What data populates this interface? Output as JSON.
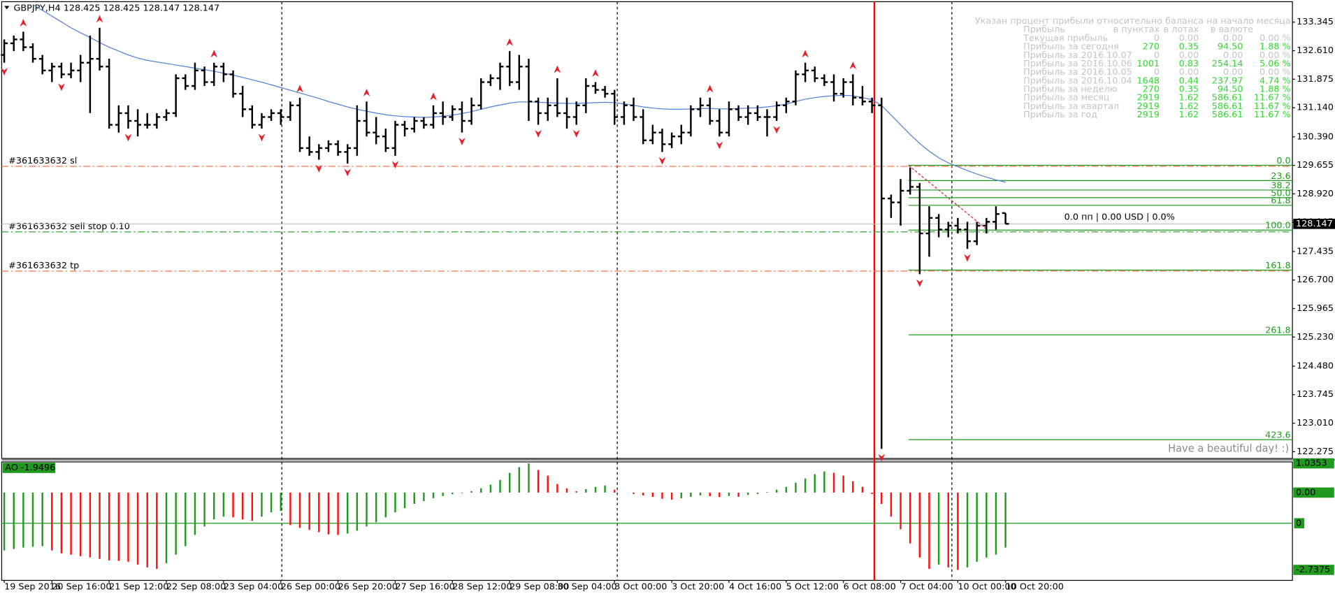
{
  "chart_data": {
    "type": "ohlc",
    "title": "GBPJPY,H4  128.425 128.425 128.147 128.147",
    "color": "#000000",
    "categories": [
      "19 Sep 2016",
      null,
      null,
      null,
      null,
      "20 Sep 16:00",
      null,
      null,
      null,
      null,
      null,
      "21 Sep 12:00",
      null,
      null,
      null,
      null,
      null,
      "22 Sep 08:00",
      null,
      null,
      null,
      null,
      null,
      "23 Sep 04:00",
      null,
      null,
      null,
      null,
      null,
      "26 Sep 00:00",
      null,
      null,
      null,
      null,
      null,
      "26 Sep 20:00",
      null,
      null,
      null,
      null,
      null,
      "27 Sep 16:00",
      null,
      null,
      null,
      null,
      null,
      "28 Sep 12:00",
      null,
      null,
      null,
      null,
      null,
      "29 Sep 08:00",
      null,
      null,
      null,
      null,
      "30 Sep 04:00",
      null,
      null,
      null,
      null,
      null,
      "3 Oct 00:00",
      null,
      null,
      null,
      null,
      null,
      "3 Oct 20:00",
      null,
      null,
      null,
      null,
      null,
      "4 Oct 16:00",
      null,
      null,
      null,
      null,
      null,
      "5 Oct 12:00",
      null,
      null,
      null,
      null,
      null,
      "6 Oct 08:00",
      null,
      null,
      null,
      null,
      null,
      "7 Oct 04:00",
      null,
      null,
      null,
      null,
      null,
      "10 Oct 00:00",
      null,
      null,
      null,
      null,
      "10 Oct 20:00"
    ],
    "open": [
      132.5,
      132.8,
      132.9,
      132.7,
      132.4,
      132.1,
      132.2,
      132.0,
      132.1,
      132.3,
      132.4,
      132.2,
      130.7,
      131.0,
      130.8,
      130.7,
      130.7,
      130.9,
      131.0,
      131.9,
      131.7,
      132.1,
      131.8,
      132.2,
      132.0,
      131.5,
      131.1,
      130.7,
      130.9,
      131.0,
      130.9,
      131.2,
      130.1,
      130.0,
      130.1,
      130.2,
      130.0,
      130.1,
      130.8,
      130.5,
      130.4,
      130.1,
      130.7,
      130.6,
      130.8,
      130.7,
      131.0,
      130.9,
      131.1,
      130.8,
      131.2,
      131.8,
      131.9,
      132.2,
      131.8,
      132.2,
      131.3,
      131.0,
      131.2,
      131.0,
      130.9,
      131.2,
      131.7,
      131.6,
      131.5,
      130.9,
      131.2,
      130.9,
      130.3,
      130.5,
      130.2,
      130.4,
      130.5,
      131.1,
      131.2,
      130.8,
      130.5,
      131.1,
      130.9,
      131.0,
      130.9,
      130.9,
      131.2,
      131.3,
      132.0,
      132.1,
      131.9,
      131.8,
      131.5,
      131.8,
      131.4,
      131.3,
      131.2,
      128.8,
      128.7,
      129.0,
      129.1,
      127.9,
      128.3,
      128.0,
      128.1,
      128.0,
      127.7,
      128.1,
      128.2,
      128.425
    ],
    "high": [
      132.9,
      133.0,
      133.1,
      132.8,
      132.5,
      132.3,
      132.3,
      132.3,
      132.5,
      133.0,
      133.2,
      132.4,
      131.2,
      131.2,
      131.1,
      131.0,
      131.0,
      131.1,
      132.0,
      132.0,
      132.3,
      132.2,
      132.3,
      132.3,
      132.1,
      131.7,
      131.2,
      131.0,
      131.1,
      131.1,
      131.3,
      131.4,
      130.4,
      130.2,
      130.3,
      130.3,
      130.2,
      131.2,
      131.3,
      130.9,
      130.6,
      130.8,
      130.8,
      130.9,
      130.9,
      131.2,
      131.3,
      131.2,
      131.3,
      131.4,
      131.9,
      132.0,
      132.3,
      132.6,
      132.5,
      132.4,
      131.4,
      131.4,
      131.9,
      131.4,
      131.3,
      131.9,
      131.8,
      131.7,
      131.6,
      131.3,
      131.4,
      131.1,
      130.7,
      130.6,
      130.5,
      130.7,
      131.2,
      131.4,
      131.4,
      131.1,
      131.3,
      131.2,
      131.2,
      131.2,
      131.1,
      131.3,
      131.4,
      132.1,
      132.3,
      132.2,
      132.0,
      132.0,
      131.9,
      132.0,
      131.7,
      131.4,
      131.4,
      128.9,
      129.3,
      129.6,
      129.2,
      128.6,
      128.4,
      128.2,
      128.3,
      128.2,
      128.2,
      128.3,
      128.6,
      128.425
    ],
    "low": [
      132.3,
      132.6,
      132.6,
      132.3,
      132.0,
      131.8,
      131.9,
      131.9,
      131.8,
      131.0,
      132.1,
      130.6,
      130.5,
      130.6,
      130.4,
      130.6,
      130.6,
      130.8,
      130.9,
      131.6,
      131.6,
      131.7,
      131.7,
      131.8,
      131.4,
      130.9,
      130.6,
      130.6,
      130.8,
      130.7,
      130.8,
      130.0,
      129.9,
      129.8,
      130.0,
      129.9,
      129.7,
      129.9,
      130.4,
      130.2,
      130.0,
      129.9,
      130.4,
      130.5,
      130.6,
      130.6,
      130.7,
      130.8,
      130.5,
      130.7,
      131.1,
      131.7,
      131.6,
      131.7,
      131.6,
      130.8,
      130.7,
      130.8,
      130.9,
      130.6,
      130.7,
      131.0,
      131.5,
      131.4,
      130.7,
      130.7,
      130.8,
      130.2,
      130.2,
      130.0,
      130.1,
      130.2,
      130.4,
      130.9,
      130.7,
      130.4,
      130.4,
      130.8,
      130.7,
      130.8,
      130.4,
      130.8,
      131.0,
      131.2,
      131.8,
      131.8,
      131.7,
      131.3,
      131.4,
      131.2,
      131.2,
      131.0,
      122.35,
      128.3,
      128.1,
      128.9,
      126.85,
      127.3,
      127.8,
      127.8,
      127.9,
      127.5,
      127.6,
      127.9,
      128.0,
      128.147
    ],
    "close": [
      132.8,
      132.9,
      132.7,
      132.4,
      132.1,
      132.2,
      132.0,
      132.1,
      132.3,
      132.4,
      132.2,
      130.7,
      131.0,
      130.8,
      130.7,
      130.7,
      130.9,
      131.0,
      131.9,
      131.7,
      132.1,
      131.8,
      132.2,
      132.0,
      131.5,
      131.1,
      130.7,
      130.9,
      131.0,
      130.9,
      131.2,
      130.1,
      130.0,
      130.1,
      130.2,
      130.0,
      130.1,
      130.8,
      130.5,
      130.4,
      130.1,
      130.7,
      130.6,
      130.8,
      130.7,
      131.0,
      130.9,
      131.1,
      130.8,
      131.2,
      131.8,
      131.9,
      132.2,
      131.8,
      132.2,
      131.3,
      131.0,
      131.2,
      131.0,
      130.9,
      131.2,
      131.7,
      131.6,
      131.5,
      130.9,
      131.2,
      130.9,
      130.3,
      130.5,
      130.2,
      130.4,
      130.5,
      131.1,
      131.2,
      130.8,
      130.5,
      131.1,
      130.9,
      131.0,
      130.9,
      130.9,
      131.2,
      131.3,
      132.0,
      132.1,
      131.9,
      131.8,
      131.5,
      131.8,
      131.4,
      131.3,
      131.2,
      128.8,
      128.7,
      129.0,
      129.1,
      127.9,
      128.3,
      128.0,
      128.1,
      128.0,
      127.7,
      128.1,
      128.2,
      128.4,
      128.147
    ],
    "ma": {
      "color": "#4f7fdc",
      "values": [
        null,
        null,
        null,
        133.8,
        133.65,
        133.5,
        133.35,
        133.2,
        133.07,
        132.95,
        132.82,
        132.7,
        132.6,
        132.5,
        132.42,
        132.36,
        132.32,
        132.28,
        132.24,
        132.2,
        132.16,
        132.12,
        132.08,
        132.03,
        131.98,
        131.92,
        131.86,
        131.8,
        131.73,
        131.66,
        131.59,
        131.52,
        131.45,
        131.38,
        131.3,
        131.23,
        131.16,
        131.1,
        131.05,
        131.0,
        130.96,
        130.93,
        130.91,
        130.9,
        130.89,
        130.9,
        130.92,
        130.95,
        130.99,
        131.04,
        131.1,
        131.16,
        131.21,
        131.26,
        131.29,
        131.29,
        131.28,
        131.27,
        131.26,
        131.25,
        131.25,
        131.26,
        131.27,
        131.28,
        131.27,
        131.24,
        131.2,
        131.16,
        131.13,
        131.11,
        131.1,
        131.1,
        131.11,
        131.12,
        131.12,
        131.11,
        131.11,
        131.12,
        131.13,
        131.14,
        131.16,
        131.19,
        131.23,
        131.3,
        131.36,
        131.4,
        131.43,
        131.45,
        131.46,
        131.45,
        131.4,
        131.35,
        131.2,
        130.95,
        130.7,
        130.45,
        130.22,
        130.02,
        129.85,
        129.72,
        129.62,
        129.52,
        129.43,
        129.35,
        129.28,
        129.22
      ]
    },
    "fractals": {
      "color": "#e8202a",
      "up": [
        2,
        10,
        22,
        31,
        38,
        45,
        53,
        58,
        62,
        74,
        84,
        89
      ],
      "down": [
        0,
        6,
        13,
        27,
        33,
        36,
        41,
        48,
        56,
        60,
        69,
        75,
        81,
        92,
        96,
        101
      ]
    },
    "ylim": [
      122.1,
      133.85
    ],
    "yticks": [
      133.345,
      {
        "value": 132.61,
        "label": "132.610"
      },
      131.875,
      {
        "value": 131.14,
        "label": "131.140"
      },
      {
        "value": 130.39,
        "label": "130.390"
      },
      129.655,
      {
        "value": 128.92,
        "label": "128.920"
      },
      128.185,
      127.435,
      {
        "value": 126.7,
        "label": "126.700"
      },
      125.965,
      {
        "value": 125.23,
        "label": "125.230"
      },
      {
        "value": 124.48,
        "label": "124.480"
      },
      123.745,
      {
        "value": 123.01,
        "label": "123.010"
      },
      122.275
    ],
    "last_price": 128.147,
    "orders": [
      {
        "label": "#361633632 sl",
        "price": 129.63,
        "color": "#ff7048"
      },
      {
        "label": "#361633632 sell stop 0.10",
        "price": 127.94,
        "color": "#1f9a1f"
      },
      {
        "label": "#361633632 tp",
        "price": 126.93,
        "color": "#ff7048"
      }
    ],
    "fib": {
      "color": "#1f9a1f",
      "line_color": "#e8202a",
      "price_0": 129.656,
      "price_100": 127.987,
      "levels": [
        {
          "value": 0,
          "label": "0.0"
        },
        23.6,
        38.2,
        {
          "value": 50,
          "label": "50.0"
        },
        61.8,
        {
          "value": 100,
          "label": "100.0"
        },
        161.8,
        261.8,
        423.6
      ]
    },
    "status": "0.0 пп | 0.00 USD | 0.0%",
    "greeting": "Have a beautiful day! :)",
    "indicator": {
      "type": "histogram",
      "label": "AO -1.9496",
      "up_color": "#1f9a1f",
      "down_color": "#ff1010",
      "ylim": [
        -3.17,
        1.056
      ],
      "yticks": [
        1.0353,
        {
          "value": 0,
          "label": "0.00"
        },
        -2.7375
      ],
      "level_label": "0",
      "values": [
        -2.05,
        -2.0,
        -1.95,
        -1.92,
        -1.9,
        -2.05,
        -2.15,
        -2.2,
        -2.25,
        -2.3,
        -2.35,
        -2.4,
        -2.42,
        -2.45,
        -2.55,
        -2.65,
        -2.7,
        -2.5,
        -2.2,
        -1.9,
        -1.5,
        -1.2,
        -0.95,
        -0.85,
        -0.88,
        -0.95,
        -1.0,
        -0.85,
        -0.7,
        -0.65,
        -1.15,
        -1.25,
        -1.32,
        -1.4,
        -1.48,
        -1.5,
        -1.45,
        -1.35,
        -1.2,
        -1.05,
        -0.88,
        -0.7,
        -0.55,
        -0.4,
        -0.3,
        -0.2,
        -0.12,
        -0.06,
        -0.02,
        0.05,
        0.15,
        0.28,
        0.45,
        0.7,
        0.9,
        1.0353,
        0.8,
        0.6,
        0.3,
        0.15,
        0.05,
        0.12,
        0.2,
        0.25,
        0.1,
        0.0,
        -0.05,
        -0.1,
        -0.15,
        -0.22,
        -0.25,
        -0.2,
        -0.15,
        -0.1,
        -0.13,
        -0.16,
        -0.12,
        -0.15,
        -0.08,
        -0.05,
        0.02,
        0.1,
        0.2,
        0.35,
        0.5,
        0.65,
        0.75,
        0.7,
        0.6,
        0.4,
        0.2,
        -0.05,
        -0.4,
        -0.85,
        -1.3,
        -1.8,
        -2.3,
        -2.7,
        -2.55,
        -2.65,
        -2.7375,
        -2.65,
        -2.45,
        -2.3,
        -2.2,
        -1.9496
      ]
    }
  },
  "info_panel": {
    "title": "Указан процент прибыли относительно баланса на начало месяца",
    "label_color": "#c4c4c4",
    "columns": [
      "Прибыль",
      "в пунктах",
      "в лотах",
      "в валюте"
    ],
    "rows": [
      {
        "label": "Текущая прибыль",
        "cells": [
          "0",
          "0.00",
          "0.00",
          "0.00 %"
        ],
        "color": "#c4c4c4"
      },
      {
        "label": "Прибыль за сегодня",
        "cells": [
          "270",
          "0.35",
          "94.50",
          "1.88 %"
        ],
        "color": "#33d633"
      },
      {
        "label": "Прибыль за 2016.10.07",
        "cells": [
          "0",
          "0.00",
          "0.00",
          "0.00 %"
        ],
        "color": "#c4c4c4"
      },
      {
        "label": "Прибыль за 2016.10.06",
        "cells": [
          "1001",
          "0.83",
          "254.14",
          "5.06 %"
        ],
        "color": "#33d633"
      },
      {
        "label": "Прибыль за 2016.10.05",
        "cells": [
          "0",
          "0.00",
          "0.00",
          "0.00 %"
        ],
        "color": "#c4c4c4"
      },
      {
        "label": "Прибыль за 2016.10.04",
        "cells": [
          "1648",
          "0.44",
          "237.97",
          "4.74 %"
        ],
        "color": "#33d633"
      },
      {
        "label": "Прибыль за неделю",
        "cells": [
          "270",
          "0.35",
          "94.50",
          "1.88 %"
        ],
        "color": "#33d633"
      },
      {
        "label": "Прибыль за месяц",
        "cells": [
          "2919",
          "1.62",
          "586.61",
          "11.67 %"
        ],
        "color": "#33d633"
      },
      {
        "label": "Прибыль за квартал",
        "cells": [
          "2919",
          "1.62",
          "586.61",
          "11.67 %"
        ],
        "color": "#33d633"
      },
      {
        "label": "Прибыль за год",
        "cells": [
          "2919",
          "1.62",
          "586.61",
          "11.67 %"
        ],
        "color": "#33d633"
      }
    ]
  }
}
